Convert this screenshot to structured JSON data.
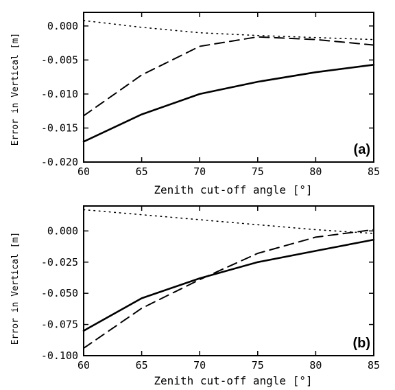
{
  "chart_data": [
    {
      "type": "line",
      "panel_label": "(a)",
      "xlabel": "Zenith cut-off angle [°]",
      "ylabel": "Error in Vertical [m]",
      "xlim": [
        60,
        85
      ],
      "ylim": [
        -0.02,
        0.002
      ],
      "xticks": [
        60,
        65,
        70,
        75,
        80,
        85
      ],
      "yticks": [
        0.0,
        -0.005,
        -0.01,
        -0.015,
        -0.02
      ],
      "ytick_labels": [
        "0.000",
        "-0.005",
        "-0.010",
        "-0.015",
        "-0.020"
      ],
      "x": [
        60,
        65,
        70,
        75,
        80,
        85
      ],
      "series": [
        {
          "style": "solid",
          "values": [
            -0.017,
            -0.013,
            -0.01,
            -0.0082,
            -0.0068,
            -0.0057
          ]
        },
        {
          "style": "dashed",
          "values": [
            -0.0132,
            -0.0072,
            -0.003,
            -0.0016,
            -0.002,
            -0.0028
          ]
        },
        {
          "style": "dotted",
          "values": [
            0.0008,
            -0.0002,
            -0.001,
            -0.0014,
            -0.0017,
            -0.002
          ]
        }
      ]
    },
    {
      "type": "line",
      "panel_label": "(b)",
      "xlabel": "Zenith cut-off angle [°]",
      "ylabel": "Error in Vertical [m]",
      "xlim": [
        60,
        85
      ],
      "ylim": [
        -0.1,
        0.02
      ],
      "xticks": [
        60,
        65,
        70,
        75,
        80,
        85
      ],
      "yticks": [
        0.0,
        -0.025,
        -0.05,
        -0.075,
        -0.1
      ],
      "ytick_labels": [
        "0.000",
        "-0.025",
        "-0.050",
        "-0.075",
        "-0.100"
      ],
      "x": [
        60,
        65,
        70,
        75,
        80,
        85
      ],
      "series": [
        {
          "style": "solid",
          "values": [
            -0.08,
            -0.054,
            -0.038,
            -0.025,
            -0.016,
            -0.007
          ]
        },
        {
          "style": "dashed",
          "values": [
            -0.094,
            -0.062,
            -0.039,
            -0.018,
            -0.005,
            0.001
          ]
        },
        {
          "style": "dotted",
          "values": [
            0.017,
            0.013,
            0.009,
            0.005,
            0.001,
            -0.002
          ]
        }
      ]
    }
  ]
}
